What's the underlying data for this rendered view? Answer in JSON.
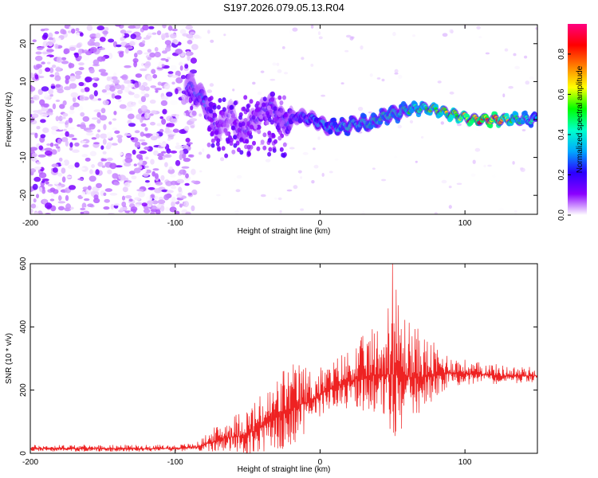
{
  "title": "S197.2026.079.05.13.R04",
  "chart_data": [
    {
      "type": "heatmap",
      "name": "spectrogram",
      "xlabel": "Height of straight line (km)",
      "ylabel": "Frequency (Hz)",
      "xlim": [
        -200,
        150
      ],
      "ylim": [
        -25,
        25
      ],
      "xticks": [
        -200,
        -100,
        0,
        100
      ],
      "yticks": [
        -20,
        -10,
        0,
        10,
        20
      ],
      "colorbar": {
        "label": "Normalized spectral amplitude",
        "range": [
          0,
          0.95
        ],
        "ticks": [
          "0.0",
          "0.2",
          "0.4",
          "0.6",
          "0.8"
        ],
        "colors": [
          "#ffffff",
          "#8a00ff",
          "#2b00ff",
          "#00a8ff",
          "#00ffcc",
          "#00ff00",
          "#ffff00",
          "#ff8000",
          "#ff0000",
          "#ff0080"
        ]
      },
      "ridge": {
        "x": [
          -90,
          -80,
          -70,
          -62,
          -55,
          -45,
          -35,
          -25,
          -15,
          -5,
          5,
          15,
          25,
          35,
          45,
          55,
          65,
          75,
          85,
          95,
          105,
          115,
          125,
          135,
          150
        ],
        "y": [
          9,
          5,
          -3,
          2,
          -4,
          0,
          4,
          -1,
          1,
          0,
          -2,
          -2,
          -1,
          -1,
          1,
          2,
          3,
          3,
          2,
          1,
          0,
          0,
          0,
          0,
          0
        ],
        "amplitude": [
          0.25,
          0.3,
          0.2,
          0.15,
          0.2,
          0.2,
          0.25,
          0.3,
          0.3,
          0.35,
          0.4,
          0.45,
          0.45,
          0.5,
          0.5,
          0.5,
          0.55,
          0.6,
          0.65,
          0.75,
          0.85,
          0.9,
          0.8,
          0.6,
          0.4
        ]
      }
    },
    {
      "type": "line",
      "name": "snr",
      "xlabel": "Height of straight line (km)",
      "ylabel": "SNR (10 * v/v)",
      "xlim": [
        -200,
        150
      ],
      "ylim": [
        0,
        600
      ],
      "xticks": [
        -200,
        -100,
        0,
        100
      ],
      "yticks": [
        0,
        200,
        400,
        600
      ],
      "color": "#ee2222",
      "envelope": {
        "x": [
          -200,
          -100,
          -85,
          -75,
          -65,
          -55,
          -45,
          -35,
          -25,
          -15,
          -5,
          5,
          15,
          25,
          35,
          45,
          50,
          55,
          65,
          75,
          85,
          95,
          105,
          115,
          125,
          135,
          150
        ],
        "base": [
          15,
          15,
          20,
          35,
          50,
          55,
          70,
          100,
          130,
          150,
          170,
          200,
          220,
          235,
          245,
          250,
          250,
          245,
          240,
          245,
          255,
          255,
          250,
          250,
          245,
          245,
          245
        ],
        "spread": [
          12,
          12,
          15,
          40,
          60,
          80,
          100,
          110,
          150,
          140,
          100,
          80,
          100,
          120,
          150,
          180,
          330,
          230,
          170,
          120,
          70,
          50,
          40,
          40,
          35,
          30,
          30
        ]
      },
      "peak": {
        "x": 50,
        "y": 600
      }
    }
  ]
}
